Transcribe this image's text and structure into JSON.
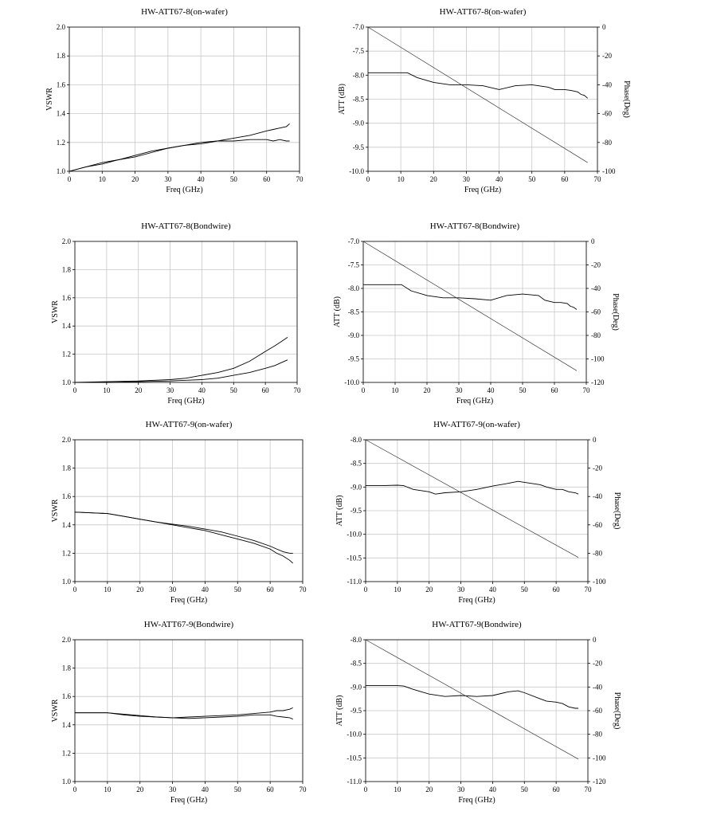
{
  "chart_data": [
    {
      "id": "vswr-att67-8-onwafer",
      "type": "line",
      "title": "HW-ATT67-8(on-wafer)",
      "xlabel": "Freq (GHz)",
      "ylabel": "VSWR",
      "xlim": [
        0,
        70
      ],
      "ylim": [
        1.0,
        2.0
      ],
      "xticks": [
        0,
        10,
        20,
        30,
        40,
        50,
        60,
        70
      ],
      "yticks": [
        1.0,
        1.2,
        1.4,
        1.6,
        1.8,
        2.0
      ],
      "xtick_labels": [
        "0",
        "10",
        "20",
        "30",
        "40",
        "50",
        "60",
        "70"
      ],
      "ytick_labels": [
        "1.0",
        "1.2",
        "1.4",
        "1.6",
        "1.8",
        "2.0"
      ],
      "grid": true,
      "series": [
        {
          "x": [
            0,
            5,
            10,
            15,
            20,
            25,
            30,
            35,
            40,
            45,
            50,
            55,
            60,
            62,
            64,
            66,
            67
          ],
          "values": [
            1.0,
            1.03,
            1.06,
            1.08,
            1.11,
            1.14,
            1.16,
            1.18,
            1.19,
            1.21,
            1.23,
            1.25,
            1.28,
            1.29,
            1.3,
            1.31,
            1.33
          ]
        },
        {
          "x": [
            0,
            5,
            10,
            15,
            20,
            25,
            30,
            35,
            40,
            45,
            50,
            55,
            60,
            62,
            64,
            66,
            67
          ],
          "values": [
            1.0,
            1.03,
            1.05,
            1.08,
            1.1,
            1.13,
            1.16,
            1.18,
            1.2,
            1.21,
            1.21,
            1.22,
            1.22,
            1.21,
            1.22,
            1.21,
            1.21
          ]
        }
      ]
    },
    {
      "id": "att-att67-8-onwafer",
      "type": "line",
      "title": "HW-ATT67-8(on-wafer)",
      "xlabel": "Freq (GHz)",
      "ylabel": "ATT (dB)",
      "ylabel_right": "Phase(Deg)",
      "xlim": [
        0,
        70
      ],
      "ylim": [
        -10.0,
        -7.0
      ],
      "ylim_right": [
        -100,
        0
      ],
      "xticks": [
        0,
        10,
        20,
        30,
        40,
        50,
        60,
        70
      ],
      "yticks": [
        -10.0,
        -9.5,
        -9.0,
        -8.5,
        -8.0,
        -7.5,
        -7.0
      ],
      "yticks_right": [
        -100,
        -80,
        -60,
        -40,
        -20,
        0
      ],
      "xtick_labels": [
        "0",
        "10",
        "20",
        "30",
        "40",
        "50",
        "60",
        "70"
      ],
      "ytick_labels": [
        "-10.0",
        "-9.5",
        "-9.0",
        "-8.5",
        "-8.0",
        "-7.5",
        "-7.0"
      ],
      "ytick_labels_right": [
        "-100",
        "-80",
        "-60",
        "-40",
        "-20",
        "0"
      ],
      "grid": true,
      "series": [
        {
          "axis": "left",
          "x": [
            0,
            5,
            10,
            12,
            15,
            20,
            25,
            30,
            35,
            40,
            45,
            50,
            55,
            57,
            60,
            62,
            64,
            65,
            66,
            67
          ],
          "values": [
            -7.95,
            -7.95,
            -7.95,
            -7.95,
            -8.05,
            -8.15,
            -8.2,
            -8.2,
            -8.22,
            -8.3,
            -8.22,
            -8.2,
            -8.25,
            -8.3,
            -8.3,
            -8.32,
            -8.35,
            -8.4,
            -8.42,
            -8.48
          ]
        },
        {
          "axis": "right",
          "x": [
            0,
            67
          ],
          "values": [
            0,
            -94
          ],
          "role": "phase"
        }
      ]
    },
    {
      "id": "vswr-att67-8-bondwire",
      "type": "line",
      "title": "HW-ATT67-8(Bondwire)",
      "xlabel": "Freq (GHz)",
      "ylabel": "VSWR",
      "xlim": [
        0,
        70
      ],
      "ylim": [
        1.0,
        2.0
      ],
      "xticks": [
        0,
        10,
        20,
        30,
        40,
        50,
        60,
        70
      ],
      "yticks": [
        1.0,
        1.2,
        1.4,
        1.6,
        1.8,
        2.0
      ],
      "xtick_labels": [
        "0",
        "10",
        "20",
        "30",
        "40",
        "50",
        "60",
        "70"
      ],
      "ytick_labels": [
        "1.0",
        "1.2",
        "1.4",
        "1.6",
        "1.8",
        "2.0"
      ],
      "grid": true,
      "series": [
        {
          "x": [
            0,
            10,
            20,
            25,
            30,
            35,
            40,
            45,
            50,
            55,
            60,
            63,
            65,
            67
          ],
          "values": [
            1.0,
            1.005,
            1.01,
            1.015,
            1.02,
            1.03,
            1.05,
            1.07,
            1.1,
            1.15,
            1.22,
            1.26,
            1.29,
            1.32
          ]
        },
        {
          "x": [
            0,
            10,
            20,
            25,
            30,
            35,
            40,
            45,
            50,
            55,
            60,
            63,
            65,
            67
          ],
          "values": [
            1.0,
            1.0,
            1.005,
            1.008,
            1.01,
            1.015,
            1.02,
            1.03,
            1.05,
            1.07,
            1.1,
            1.12,
            1.14,
            1.16
          ]
        }
      ]
    },
    {
      "id": "att-att67-8-bondwire",
      "type": "line",
      "title": "HW-ATT67-8(Bondwire)",
      "xlabel": "Freq (GHz)",
      "ylabel": "ATT (dB)",
      "ylabel_right": "Phase(Deg)",
      "xlim": [
        0,
        70
      ],
      "ylim": [
        -10.0,
        -7.0
      ],
      "ylim_right": [
        -120,
        0
      ],
      "xticks": [
        0,
        10,
        20,
        30,
        40,
        50,
        60,
        70
      ],
      "yticks": [
        -10.0,
        -9.5,
        -9.0,
        -8.5,
        -8.0,
        -7.5,
        -7.0
      ],
      "yticks_right": [
        -120,
        -100,
        -80,
        -60,
        -40,
        -20,
        0
      ],
      "xtick_labels": [
        "0",
        "10",
        "20",
        "30",
        "40",
        "50",
        "60",
        "70"
      ],
      "ytick_labels": [
        "-10.0",
        "-9.5",
        "-9.0",
        "-8.5",
        "-8.0",
        "-7.5",
        "-7.0"
      ],
      "ytick_labels_right": [
        "-120",
        "-100",
        "-80",
        "-60",
        "-40",
        "-20",
        "0"
      ],
      "grid": true,
      "series": [
        {
          "axis": "left",
          "x": [
            0,
            5,
            10,
            12,
            15,
            20,
            25,
            30,
            35,
            40,
            45,
            50,
            55,
            57,
            60,
            62,
            64,
            65,
            66,
            67
          ],
          "values": [
            -7.92,
            -7.92,
            -7.92,
            -7.92,
            -8.05,
            -8.15,
            -8.2,
            -8.2,
            -8.22,
            -8.25,
            -8.15,
            -8.12,
            -8.15,
            -8.25,
            -8.3,
            -8.3,
            -8.32,
            -8.38,
            -8.4,
            -8.45
          ]
        },
        {
          "axis": "right",
          "x": [
            0,
            67
          ],
          "values": [
            0,
            -110
          ],
          "role": "phase"
        }
      ]
    },
    {
      "id": "vswr-att67-9-onwafer",
      "type": "line",
      "title": "HW-ATT67-9(on-wafer)",
      "xlabel": "Freq (GHz)",
      "ylabel": "VSWR",
      "xlim": [
        0,
        70
      ],
      "ylim": [
        1.0,
        2.0
      ],
      "xticks": [
        0,
        10,
        20,
        30,
        40,
        50,
        60,
        70
      ],
      "yticks": [
        1.0,
        1.2,
        1.4,
        1.6,
        1.8,
        2.0
      ],
      "xtick_labels": [
        "0",
        "10",
        "20",
        "30",
        "40",
        "50",
        "60",
        "70"
      ],
      "ytick_labels": [
        "1.0",
        "1.2",
        "1.4",
        "1.6",
        "1.8",
        "2.0"
      ],
      "grid": true,
      "series": [
        {
          "x": [
            0,
            5,
            10,
            15,
            20,
            25,
            30,
            35,
            40,
            45,
            50,
            55,
            60,
            62,
            64,
            66,
            67
          ],
          "values": [
            1.49,
            1.485,
            1.48,
            1.46,
            1.44,
            1.42,
            1.4,
            1.38,
            1.36,
            1.33,
            1.3,
            1.27,
            1.23,
            1.2,
            1.18,
            1.15,
            1.13
          ]
        },
        {
          "x": [
            0,
            5,
            10,
            15,
            20,
            25,
            30,
            35,
            40,
            45,
            50,
            55,
            60,
            62,
            64,
            66,
            67
          ],
          "values": [
            1.49,
            1.485,
            1.48,
            1.46,
            1.44,
            1.42,
            1.405,
            1.39,
            1.37,
            1.35,
            1.32,
            1.29,
            1.25,
            1.23,
            1.21,
            1.2,
            1.2
          ]
        }
      ]
    },
    {
      "id": "att-att67-9-onwafer",
      "type": "line",
      "title": "HW-ATT67-9(on-wafer)",
      "xlabel": "Freq (GHz)",
      "ylabel": "ATT (dB)",
      "ylabel_right": "Phase(Deg)",
      "xlim": [
        0,
        70
      ],
      "ylim": [
        -11.0,
        -8.0
      ],
      "ylim_right": [
        -100,
        0
      ],
      "xticks": [
        0,
        10,
        20,
        30,
        40,
        50,
        60,
        70
      ],
      "yticks": [
        -11.0,
        -10.5,
        -10.0,
        -9.5,
        -9.0,
        -8.5,
        -8.0
      ],
      "yticks_right": [
        -100,
        -80,
        -60,
        -40,
        -20,
        0
      ],
      "xtick_labels": [
        "0",
        "10",
        "20",
        "30",
        "40",
        "50",
        "60",
        "70"
      ],
      "ytick_labels": [
        "-11.0",
        "-10.5",
        "-10.0",
        "-9.5",
        "-9.0",
        "-8.5",
        "-8.0"
      ],
      "ytick_labels_right": [
        "-100",
        "-80",
        "-60",
        "-40",
        "-20",
        "0"
      ],
      "grid": true,
      "series": [
        {
          "axis": "left",
          "x": [
            0,
            5,
            10,
            12,
            15,
            20,
            22,
            25,
            30,
            35,
            40,
            45,
            48,
            50,
            55,
            57,
            60,
            62,
            64,
            66,
            67
          ],
          "values": [
            -8.97,
            -8.97,
            -8.96,
            -8.97,
            -9.05,
            -9.1,
            -9.15,
            -9.12,
            -9.1,
            -9.05,
            -8.98,
            -8.92,
            -8.88,
            -8.9,
            -8.95,
            -9.0,
            -9.05,
            -9.05,
            -9.1,
            -9.12,
            -9.15
          ]
        },
        {
          "axis": "right",
          "x": [
            0,
            67
          ],
          "values": [
            0,
            -83
          ],
          "role": "phase"
        }
      ]
    },
    {
      "id": "vswr-att67-9-bondwire",
      "type": "line",
      "title": "HW-ATT67-9(Bondwire)",
      "xlabel": "Freq (GHz)",
      "ylabel": "VSWR",
      "xlim": [
        0,
        70
      ],
      "ylim": [
        1.0,
        2.0
      ],
      "xticks": [
        0,
        10,
        20,
        30,
        40,
        50,
        60,
        70
      ],
      "yticks": [
        1.0,
        1.2,
        1.4,
        1.6,
        1.8,
        2.0
      ],
      "xtick_labels": [
        "0",
        "10",
        "20",
        "30",
        "40",
        "50",
        "60",
        "70"
      ],
      "ytick_labels": [
        "1.0",
        "1.2",
        "1.4",
        "1.6",
        "1.8",
        "2.0"
      ],
      "grid": true,
      "series": [
        {
          "x": [
            0,
            5,
            10,
            15,
            20,
            25,
            30,
            35,
            40,
            45,
            50,
            55,
            60,
            62,
            64,
            66,
            67
          ],
          "values": [
            1.485,
            1.485,
            1.485,
            1.47,
            1.46,
            1.455,
            1.45,
            1.455,
            1.46,
            1.465,
            1.47,
            1.48,
            1.49,
            1.5,
            1.5,
            1.51,
            1.52
          ]
        },
        {
          "x": [
            0,
            5,
            10,
            15,
            20,
            25,
            30,
            35,
            40,
            45,
            50,
            55,
            60,
            62,
            64,
            66,
            67
          ],
          "values": [
            1.485,
            1.485,
            1.485,
            1.475,
            1.465,
            1.455,
            1.45,
            1.445,
            1.45,
            1.455,
            1.46,
            1.47,
            1.47,
            1.46,
            1.455,
            1.45,
            1.44
          ]
        }
      ]
    },
    {
      "id": "att-att67-9-bondwire",
      "type": "line",
      "title": "HW-ATT67-9(Bondwire)",
      "xlabel": "Freq (GHz)",
      "ylabel": "ATT (dB)",
      "ylabel_right": "Phase(Deg)",
      "xlim": [
        0,
        70
      ],
      "ylim": [
        -11.0,
        -8.0
      ],
      "ylim_right": [
        -120,
        0
      ],
      "xticks": [
        0,
        10,
        20,
        30,
        40,
        50,
        60,
        70
      ],
      "yticks": [
        -11.0,
        -10.5,
        -10.0,
        -9.5,
        -9.0,
        -8.5,
        -8.0
      ],
      "yticks_right": [
        -120,
        -100,
        -80,
        -60,
        -40,
        -20,
        0
      ],
      "xtick_labels": [
        "0",
        "10",
        "20",
        "30",
        "40",
        "50",
        "60",
        "70"
      ],
      "ytick_labels": [
        "-11.0",
        "-10.5",
        "-10.0",
        "-9.5",
        "-9.0",
        "-8.5",
        "-8.0"
      ],
      "ytick_labels_right": [
        "-120",
        "-100",
        "-80",
        "-60",
        "-40",
        "-20",
        "0"
      ],
      "grid": true,
      "series": [
        {
          "axis": "left",
          "x": [
            0,
            5,
            10,
            12,
            15,
            20,
            25,
            30,
            35,
            40,
            45,
            48,
            50,
            55,
            57,
            60,
            62,
            64,
            66,
            67
          ],
          "values": [
            -8.97,
            -8.97,
            -8.97,
            -8.98,
            -9.05,
            -9.15,
            -9.2,
            -9.18,
            -9.2,
            -9.18,
            -9.1,
            -9.08,
            -9.12,
            -9.25,
            -9.3,
            -9.32,
            -9.35,
            -9.42,
            -9.45,
            -9.45
          ]
        },
        {
          "axis": "right",
          "x": [
            0,
            67
          ],
          "values": [
            0,
            -101
          ],
          "role": "phase"
        }
      ]
    }
  ]
}
